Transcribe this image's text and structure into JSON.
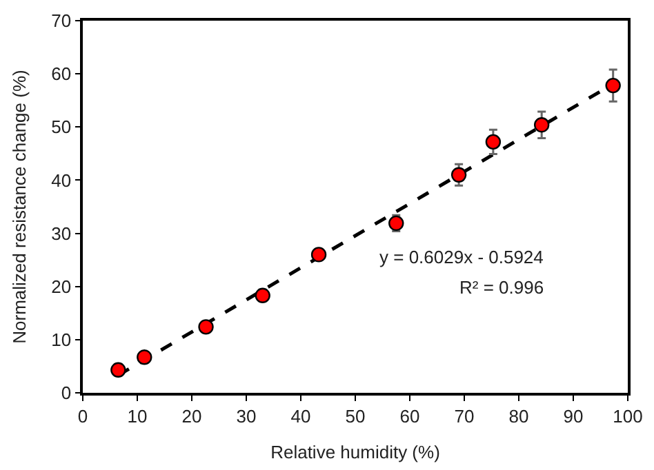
{
  "chart_data": {
    "type": "scatter",
    "xlabel": "Relative humidity (%)",
    "ylabel": "Normalized resistance change (%)",
    "xlim": [
      0,
      100
    ],
    "xticks": [
      0,
      10,
      20,
      30,
      40,
      50,
      60,
      70,
      80,
      90,
      100
    ],
    "ylim": [
      0,
      70
    ],
    "yticks": [
      0,
      10,
      20,
      30,
      40,
      50,
      60,
      70
    ],
    "marker": "circle",
    "series": [
      {
        "type": "line",
        "marker": "none",
        "line_style": "dashed",
        "color": "#000000",
        "x": [
          6.5,
          97.3
        ],
        "values": [
          3.3,
          58.1
        ]
      },
      {
        "color": "#ff0000",
        "x": [
          6.5,
          11.3,
          22.6,
          33,
          43.3,
          57.5,
          69,
          75.3,
          84.2,
          97.3
        ],
        "values": [
          4.3,
          6.7,
          12.4,
          18.3,
          26,
          31.9,
          41,
          47.2,
          50.4,
          57.8
        ],
        "errors": [
          null,
          null,
          null,
          null,
          null,
          1.5,
          2,
          2.3,
          2.5,
          3
        ]
      }
    ],
    "annotations": [
      "y = 0.6029x - 0.5924",
      "R² = 0.996"
    ]
  }
}
